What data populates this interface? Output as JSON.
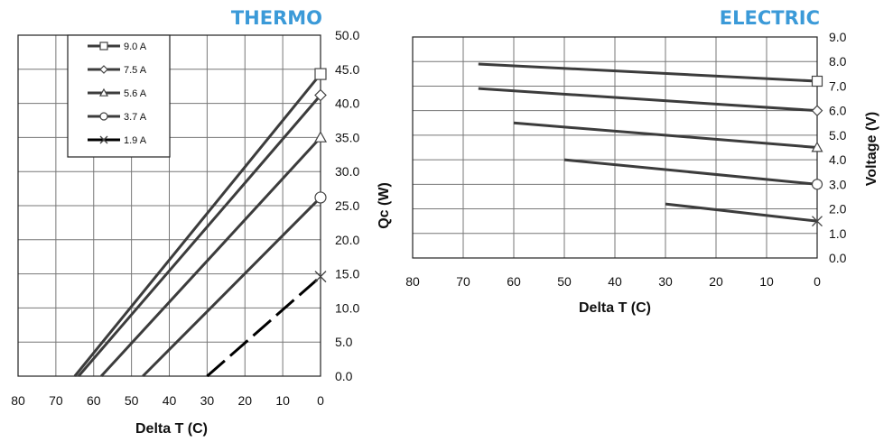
{
  "colors": {
    "title": "#3b9ad8",
    "line": "#3c3c3c",
    "dark_line": "#000000",
    "grid": "#777777"
  },
  "chart_data": [
    {
      "type": "line",
      "title": "THERMO",
      "xlabel": "Delta T (C)",
      "ylabel": "Qc (W)",
      "xlim": [
        80,
        0
      ],
      "ylim": [
        0,
        50
      ],
      "xticks": [
        "80",
        "70",
        "60",
        "50",
        "40",
        "30",
        "20",
        "10",
        "0"
      ],
      "yticks": [
        "0.0",
        "5.0",
        "10.0",
        "15.0",
        "20.0",
        "25.0",
        "30.0",
        "35.0",
        "40.0",
        "45.0",
        "50.0"
      ],
      "grid": true,
      "legend_position": "top-left",
      "series": [
        {
          "name": "9.0 A",
          "marker": "square",
          "x": [
            65,
            0
          ],
          "y": [
            0,
            44.3
          ]
        },
        {
          "name": "7.5 A",
          "marker": "diamond",
          "x": [
            64,
            0
          ],
          "y": [
            0,
            41.2
          ]
        },
        {
          "name": "5.6 A",
          "marker": "triangle",
          "x": [
            58,
            0
          ],
          "y": [
            0,
            35.0
          ]
        },
        {
          "name": "3.7 A",
          "marker": "circle",
          "x": [
            47,
            0
          ],
          "y": [
            0,
            26.2
          ]
        },
        {
          "name": "1.9 A",
          "marker": "x",
          "x": [
            30,
            0
          ],
          "y": [
            0,
            14.6
          ],
          "dashed": true
        }
      ]
    },
    {
      "type": "line",
      "title": "ELECTRIC",
      "xlabel": "Delta T (C)",
      "ylabel": "Voltage (V)",
      "xlim": [
        80,
        0
      ],
      "ylim": [
        0,
        9
      ],
      "xticks": [
        "80",
        "70",
        "60",
        "50",
        "40",
        "30",
        "20",
        "10",
        "0"
      ],
      "yticks": [
        "0.0",
        "1.0",
        "2.0",
        "3.0",
        "4.0",
        "5.0",
        "6.0",
        "7.0",
        "8.0",
        "9.0"
      ],
      "grid": true,
      "series": [
        {
          "name": "9.0 A",
          "marker": "square",
          "x": [
            67,
            0
          ],
          "y": [
            7.9,
            7.2
          ]
        },
        {
          "name": "7.5 A",
          "marker": "diamond",
          "x": [
            67,
            0
          ],
          "y": [
            6.9,
            6.0
          ]
        },
        {
          "name": "5.6 A",
          "marker": "triangle",
          "x": [
            60,
            0
          ],
          "y": [
            5.5,
            4.5
          ]
        },
        {
          "name": "3.7 A",
          "marker": "circle",
          "x": [
            50,
            0
          ],
          "y": [
            4.0,
            3.0
          ]
        },
        {
          "name": "1.9 A",
          "marker": "x",
          "x": [
            30,
            0
          ],
          "y": [
            2.2,
            1.5
          ]
        }
      ]
    }
  ]
}
